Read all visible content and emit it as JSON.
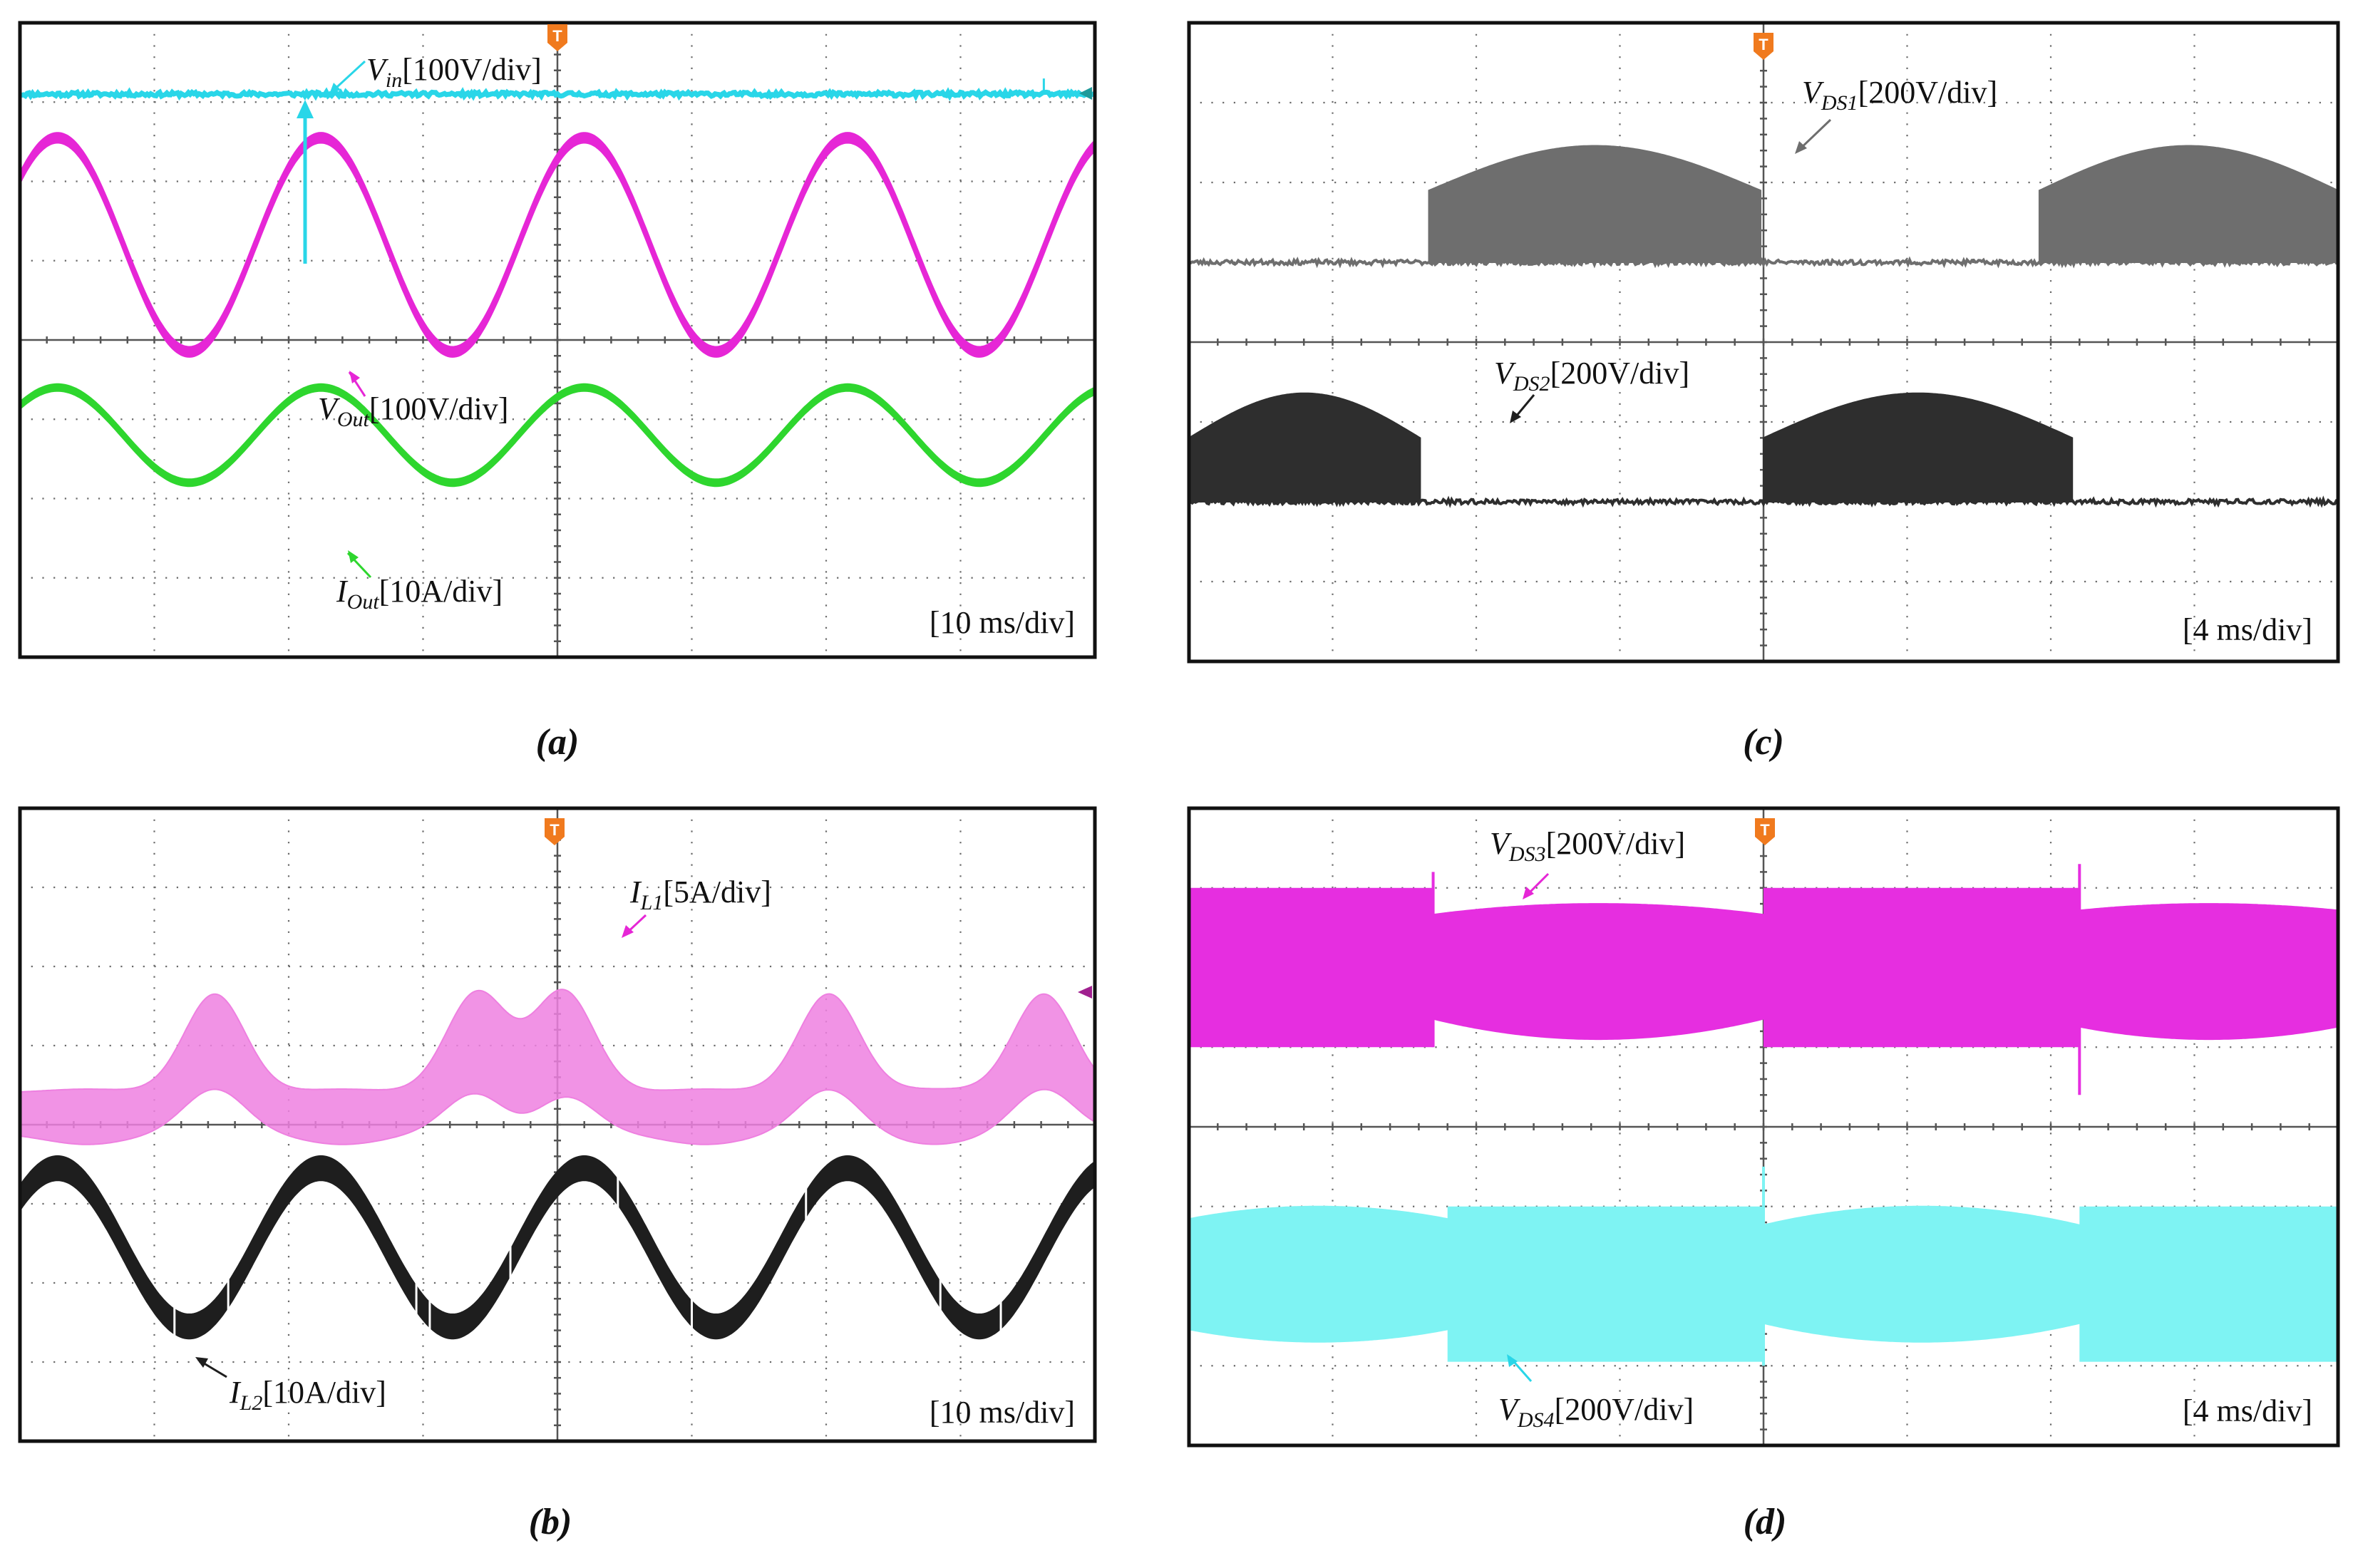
{
  "chart_data": [
    {
      "type": "line",
      "caption": "(a)",
      "timebase": "[10 ms/div]",
      "trigger_marker": "T",
      "series": [
        {
          "label_main": "V",
          "label_sub": "in",
          "label_scale": "[100V/div]",
          "color": "#29d6e8",
          "shape": "dc",
          "level_div": 3.1,
          "ripple_div": 0.05
        },
        {
          "label_main": "V",
          "label_sub": "Out",
          "label_scale": "[100V/div]",
          "color": "#e626d6",
          "shape": "sine",
          "center_div": 1.2,
          "amplitude_div": 1.35,
          "period_div": 1.96,
          "peak_div": 0.2,
          "band_div": 0.12
        },
        {
          "label_main": "I",
          "label_sub": "Out",
          "label_scale": "[10A/div]",
          "color": "#2ed62e",
          "shape": "sine",
          "center_div": -1.2,
          "amplitude_div": 0.6,
          "period_div": 1.96,
          "peak_div": 0.2,
          "band_div": 0.08
        }
      ]
    },
    {
      "type": "line",
      "caption": "(b)",
      "timebase": "[10 ms/div]",
      "trigger_marker": "T",
      "series": [
        {
          "label_main": "I",
          "label_sub": "L1",
          "label_scale": "[5A/div]",
          "color": "#ee80e0",
          "shape": "inductor1",
          "center_div": 1.0
        },
        {
          "label_main": "I",
          "label_sub": "L2",
          "label_scale": "[10A/div]",
          "color": "#1e1e1e",
          "shape": "sine_switching",
          "center_div": -1.55,
          "amplitude_div": 1.0,
          "period_div": 1.96,
          "peak_div": 0.2,
          "band_div": 0.3
        }
      ]
    },
    {
      "type": "area",
      "caption": "(c)",
      "timebase": "[4 ms/div]",
      "trigger_marker": "T",
      "series": [
        {
          "label_main": "V",
          "label_sub": "DS1",
          "label_scale": "[200V/div]",
          "color": "#6e6e6e",
          "shape": "switch",
          "base_div": 1.0,
          "high_div": 1.9,
          "bulge_div": 0.7,
          "on_intervals_div": [
            [
              -2.33,
              -0.02
            ],
            [
              1.92,
              4.0
            ]
          ]
        },
        {
          "label_main": "V",
          "label_sub": "DS2",
          "label_scale": "[200V/div]",
          "color": "#2e2e2e",
          "shape": "switch",
          "base_div": -2.0,
          "high_div": -1.2,
          "bulge_div": 0.7,
          "on_intervals_div": [
            [
              -4.0,
              -2.39
            ],
            [
              0.0,
              2.15
            ]
          ]
        }
      ]
    },
    {
      "type": "area",
      "caption": "(d)",
      "timebase": "[4 ms/div]",
      "trigger_marker": "T",
      "series": [
        {
          "label_main": "V",
          "label_sub": "DS3",
          "label_scale": "[200V/div]",
          "color": "#e62ee0",
          "shape": "complementary",
          "rect_top_div": 3.0,
          "rect_bottom_div": 1.0,
          "arc_bottom_div": 1.1,
          "arc_top_div": 2.8,
          "rect_intervals_div": [
            [
              -4.0,
              -2.3
            ],
            [
              0.0,
              2.2
            ]
          ]
        },
        {
          "label_main": "V",
          "label_sub": "DS4",
          "label_scale": "[200V/div]",
          "color": "#7ef3f3",
          "shape": "complementary",
          "rect_top_div": -1.0,
          "rect_bottom_div": -2.95,
          "arc_bottom_div": -2.7,
          "arc_top_div": -1.0,
          "rect_intervals_div": [
            [
              -2.2,
              0.0
            ],
            [
              2.2,
              4.0
            ]
          ]
        }
      ]
    }
  ]
}
